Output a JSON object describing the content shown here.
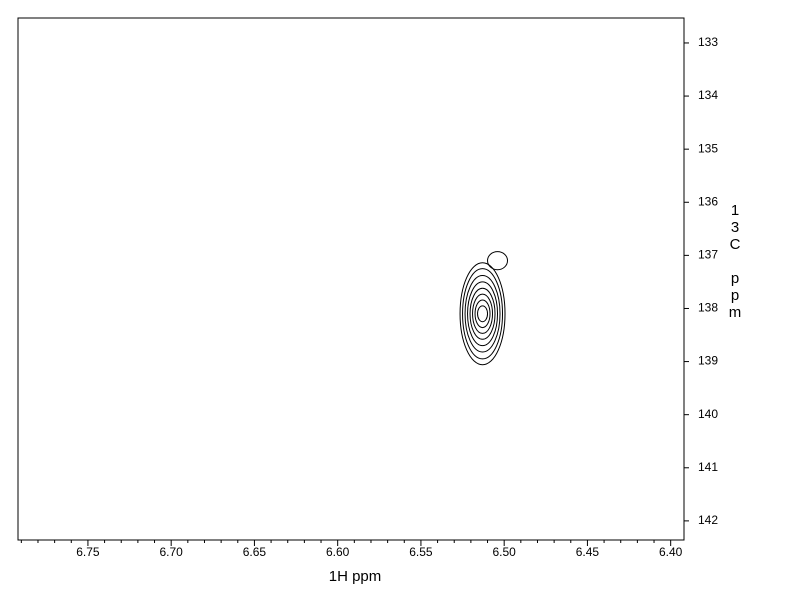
{
  "chart_data": {
    "type": "contour",
    "x_label": "1H ppm",
    "y_label": "13C ppm",
    "xlim": [
      6.792,
      6.392
    ],
    "ylim": [
      132.53,
      142.36
    ],
    "xticks": [
      {
        "value": 6.75,
        "label": "6.75"
      },
      {
        "value": 6.7,
        "label": "6.70"
      },
      {
        "value": 6.65,
        "label": "6.65"
      },
      {
        "value": 6.6,
        "label": "6.60"
      },
      {
        "value": 6.55,
        "label": "6.55"
      },
      {
        "value": 6.5,
        "label": "6.50"
      },
      {
        "value": 6.45,
        "label": "6.45"
      },
      {
        "value": 6.4,
        "label": "6.40"
      }
    ],
    "xminorticks": [
      6.79,
      6.78,
      6.77,
      6.76,
      6.74,
      6.73,
      6.72,
      6.71,
      6.69,
      6.68,
      6.67,
      6.66,
      6.64,
      6.63,
      6.62,
      6.61,
      6.59,
      6.58,
      6.57,
      6.56,
      6.54,
      6.53,
      6.52,
      6.51,
      6.49,
      6.48,
      6.47,
      6.46,
      6.44,
      6.43,
      6.42,
      6.41
    ],
    "yticks": [
      133,
      134,
      135,
      136,
      137,
      138,
      139,
      140,
      141,
      142
    ],
    "color": "#000000",
    "peaks": [
      {
        "x": 6.513,
        "y": 138.1,
        "levels": [
          [
            0.0135,
            0.96
          ],
          [
            0.012,
            0.85
          ],
          [
            0.0105,
            0.72
          ],
          [
            0.009,
            0.6
          ],
          [
            0.0075,
            0.48
          ],
          [
            0.006,
            0.37
          ],
          [
            0.0045,
            0.26
          ],
          [
            0.003,
            0.15
          ]
        ]
      },
      {
        "x": 6.504,
        "y": 137.1,
        "levels": [
          [
            0.006,
            0.17
          ]
        ]
      }
    ]
  }
}
